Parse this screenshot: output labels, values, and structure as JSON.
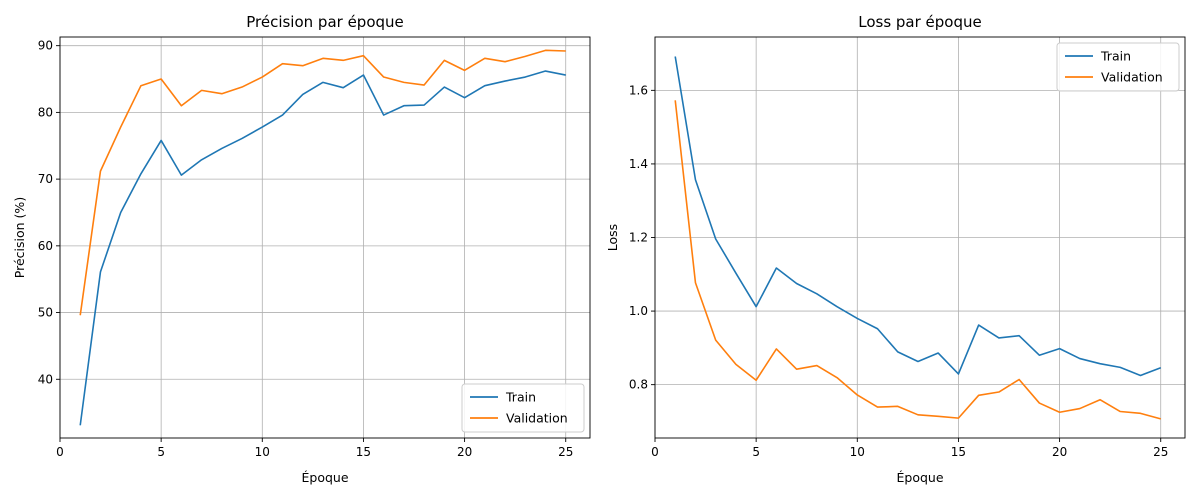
{
  "chart_data": [
    {
      "type": "line",
      "title": "Précision par époque",
      "xlabel": "Époque",
      "ylabel": "Précision (%)",
      "xlim": [
        0,
        26.2
      ],
      "ylim": [
        31.2,
        91.3
      ],
      "xticks": [
        0,
        5,
        10,
        15,
        20,
        25
      ],
      "yticks": [
        40,
        50,
        60,
        70,
        80,
        90
      ],
      "grid": true,
      "legend_position": "lower-right",
      "x": [
        1,
        2,
        3,
        4,
        5,
        6,
        7,
        8,
        9,
        10,
        11,
        12,
        13,
        14,
        15,
        16,
        17,
        18,
        19,
        20,
        21,
        22,
        23,
        24,
        25
      ],
      "series": [
        {
          "name": "Train",
          "color": "#1f77b4",
          "values": [
            33.1,
            56.1,
            65.0,
            70.8,
            75.8,
            70.6,
            72.9,
            74.6,
            76.1,
            77.8,
            79.6,
            82.7,
            84.5,
            83.7,
            85.6,
            79.6,
            81.0,
            81.1,
            83.8,
            82.2,
            84.0,
            84.7,
            85.3,
            86.2,
            85.6
          ]
        },
        {
          "name": "Validation",
          "color": "#ff7f0e",
          "values": [
            49.6,
            71.2,
            77.8,
            84.0,
            85.0,
            81.0,
            83.3,
            82.8,
            83.8,
            85.3,
            87.3,
            87.0,
            88.1,
            87.8,
            88.5,
            85.3,
            84.5,
            84.1,
            87.8,
            86.3,
            88.1,
            87.6,
            88.4,
            89.3,
            89.2
          ]
        }
      ]
    },
    {
      "type": "line",
      "title": "Loss par époque",
      "xlabel": "Époque",
      "ylabel": "Loss",
      "xlim": [
        0,
        26.2
      ],
      "ylim": [
        0.655,
        1.745
      ],
      "xticks": [
        0,
        5,
        10,
        15,
        20,
        25
      ],
      "yticks": [
        0.8,
        1.0,
        1.2,
        1.4,
        1.6
      ],
      "grid": true,
      "legend_position": "upper-right",
      "x": [
        1,
        2,
        3,
        4,
        5,
        6,
        7,
        8,
        9,
        10,
        11,
        12,
        13,
        14,
        15,
        16,
        17,
        18,
        19,
        20,
        21,
        22,
        23,
        24,
        25
      ],
      "series": [
        {
          "name": "Train",
          "color": "#1f77b4",
          "values": [
            1.692,
            1.357,
            1.196,
            1.103,
            1.012,
            1.117,
            1.075,
            1.047,
            1.012,
            0.98,
            0.952,
            0.889,
            0.863,
            0.886,
            0.829,
            0.962,
            0.927,
            0.933,
            0.88,
            0.898,
            0.871,
            0.857,
            0.847,
            0.825,
            0.846
          ]
        },
        {
          "name": "Validation",
          "color": "#ff7f0e",
          "values": [
            1.573,
            1.077,
            0.921,
            0.855,
            0.812,
            0.897,
            0.842,
            0.852,
            0.819,
            0.772,
            0.739,
            0.741,
            0.718,
            0.714,
            0.709,
            0.771,
            0.78,
            0.814,
            0.75,
            0.725,
            0.735,
            0.759,
            0.727,
            0.722,
            0.707
          ]
        }
      ]
    }
  ]
}
